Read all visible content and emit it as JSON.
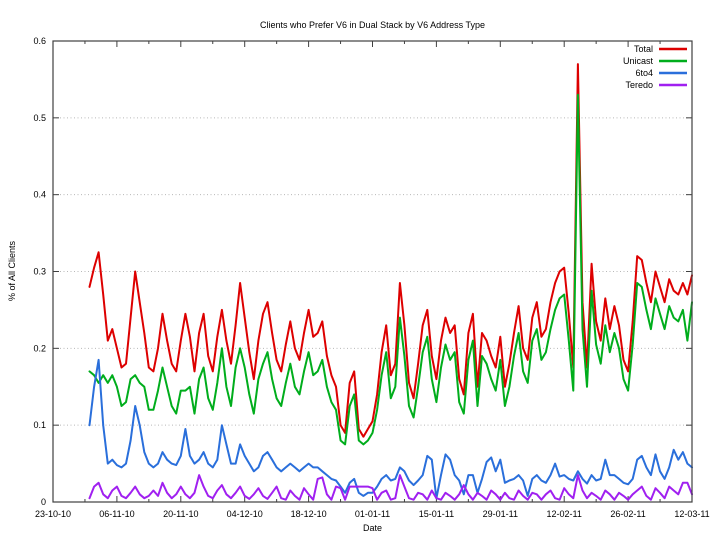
{
  "title": "Clients who Prefer V6 in Dual Stack by V6 Address Type",
  "chart_data": {
    "type": "line",
    "title": "Clients who Prefer V6 in Dual Stack by V6 Address Type",
    "xlabel": "Date",
    "ylabel": "% of All Clients",
    "ylim": [
      0,
      0.6
    ],
    "y_tick_labels": [
      "0",
      "0.1",
      "0.2",
      "0.3",
      "0.4",
      "0.5",
      "0.6"
    ],
    "y_tick_values": [
      0,
      0.1,
      0.2,
      0.3,
      0.4,
      0.5,
      0.6
    ],
    "x_tick_labels": [
      "23-10-10",
      "06-11-10",
      "20-11-10",
      "04-12-10",
      "18-12-10",
      "01-01-11",
      "15-01-11",
      "29-01-11",
      "12-02-11",
      "26-02-11",
      "12-03-11"
    ],
    "x_tick_interval_days": 14,
    "x_minor_tick_interval_days": 7,
    "x_range_days": [
      0,
      140
    ],
    "series_x_start_day": 8,
    "series_x_start_date": "31-10-10",
    "series_x_step_days": 1,
    "grid": "horizontal dotted gridlines at y ticks, ticks mirrored on all four sides pointing inward",
    "legend_position": "top-right inside plot, labels right-aligned left of line samples",
    "series": [
      {
        "name": "Total",
        "color": "#dd0000",
        "values": [
          0.28,
          0.305,
          0.325,
          0.27,
          0.21,
          0.225,
          0.2,
          0.175,
          0.18,
          0.24,
          0.3,
          0.26,
          0.22,
          0.175,
          0.17,
          0.2,
          0.245,
          0.21,
          0.18,
          0.17,
          0.21,
          0.245,
          0.215,
          0.17,
          0.22,
          0.245,
          0.19,
          0.17,
          0.215,
          0.25,
          0.21,
          0.18,
          0.23,
          0.285,
          0.24,
          0.195,
          0.16,
          0.21,
          0.245,
          0.26,
          0.22,
          0.185,
          0.17,
          0.205,
          0.235,
          0.2,
          0.185,
          0.22,
          0.25,
          0.215,
          0.22,
          0.235,
          0.19,
          0.165,
          0.15,
          0.1,
          0.09,
          0.155,
          0.17,
          0.095,
          0.085,
          0.095,
          0.105,
          0.14,
          0.195,
          0.23,
          0.165,
          0.18,
          0.285,
          0.23,
          0.155,
          0.135,
          0.18,
          0.23,
          0.25,
          0.19,
          0.16,
          0.21,
          0.24,
          0.22,
          0.23,
          0.16,
          0.14,
          0.22,
          0.245,
          0.15,
          0.22,
          0.21,
          0.19,
          0.175,
          0.215,
          0.15,
          0.18,
          0.22,
          0.255,
          0.2,
          0.185,
          0.24,
          0.26,
          0.215,
          0.225,
          0.26,
          0.285,
          0.3,
          0.305,
          0.245,
          0.175,
          0.57,
          0.26,
          0.175,
          0.31,
          0.235,
          0.21,
          0.265,
          0.225,
          0.255,
          0.23,
          0.185,
          0.17,
          0.235,
          0.32,
          0.315,
          0.285,
          0.26,
          0.3,
          0.28,
          0.26,
          0.29,
          0.275,
          0.27,
          0.285,
          0.27,
          0.295
        ]
      },
      {
        "name": "Unicast",
        "color": "#00ad1c",
        "values": [
          0.17,
          0.165,
          0.155,
          0.165,
          0.155,
          0.165,
          0.15,
          0.125,
          0.13,
          0.16,
          0.165,
          0.155,
          0.15,
          0.12,
          0.12,
          0.145,
          0.175,
          0.15,
          0.125,
          0.115,
          0.145,
          0.145,
          0.15,
          0.115,
          0.16,
          0.175,
          0.135,
          0.12,
          0.155,
          0.2,
          0.15,
          0.125,
          0.175,
          0.2,
          0.175,
          0.14,
          0.115,
          0.16,
          0.18,
          0.195,
          0.16,
          0.135,
          0.125,
          0.155,
          0.18,
          0.15,
          0.14,
          0.17,
          0.195,
          0.165,
          0.17,
          0.185,
          0.15,
          0.13,
          0.12,
          0.08,
          0.075,
          0.125,
          0.14,
          0.08,
          0.075,
          0.08,
          0.09,
          0.12,
          0.165,
          0.195,
          0.135,
          0.15,
          0.24,
          0.19,
          0.125,
          0.11,
          0.15,
          0.195,
          0.215,
          0.16,
          0.13,
          0.175,
          0.205,
          0.185,
          0.195,
          0.13,
          0.115,
          0.185,
          0.21,
          0.125,
          0.19,
          0.18,
          0.16,
          0.145,
          0.185,
          0.125,
          0.15,
          0.19,
          0.22,
          0.17,
          0.155,
          0.21,
          0.225,
          0.185,
          0.195,
          0.225,
          0.25,
          0.265,
          0.27,
          0.21,
          0.145,
          0.53,
          0.225,
          0.15,
          0.275,
          0.205,
          0.18,
          0.23,
          0.195,
          0.22,
          0.2,
          0.16,
          0.145,
          0.205,
          0.285,
          0.28,
          0.25,
          0.225,
          0.265,
          0.245,
          0.225,
          0.255,
          0.24,
          0.235,
          0.25,
          0.21,
          0.26
        ]
      },
      {
        "name": "6to4",
        "color": "#2a6fdb",
        "values": [
          0.1,
          0.15,
          0.185,
          0.1,
          0.05,
          0.055,
          0.048,
          0.045,
          0.05,
          0.08,
          0.125,
          0.1,
          0.065,
          0.05,
          0.045,
          0.05,
          0.065,
          0.055,
          0.05,
          0.048,
          0.06,
          0.095,
          0.06,
          0.05,
          0.055,
          0.065,
          0.05,
          0.045,
          0.055,
          0.1,
          0.075,
          0.05,
          0.05,
          0.075,
          0.06,
          0.05,
          0.04,
          0.045,
          0.06,
          0.065,
          0.055,
          0.045,
          0.04,
          0.045,
          0.05,
          0.045,
          0.04,
          0.045,
          0.05,
          0.045,
          0.045,
          0.04,
          0.035,
          0.03,
          0.028,
          0.02,
          0.012,
          0.025,
          0.03,
          0.012,
          0.008,
          0.012,
          0.012,
          0.02,
          0.03,
          0.035,
          0.028,
          0.03,
          0.045,
          0.04,
          0.028,
          0.022,
          0.028,
          0.035,
          0.06,
          0.055,
          0.005,
          0.035,
          0.062,
          0.055,
          0.035,
          0.028,
          0.01,
          0.035,
          0.035,
          0.012,
          0.03,
          0.052,
          0.058,
          0.04,
          0.055,
          0.025,
          0.028,
          0.03,
          0.035,
          0.028,
          0.008,
          0.03,
          0.035,
          0.028,
          0.025,
          0.035,
          0.05,
          0.033,
          0.035,
          0.03,
          0.028,
          0.04,
          0.03,
          0.024,
          0.035,
          0.028,
          0.03,
          0.055,
          0.035,
          0.035,
          0.03,
          0.025,
          0.023,
          0.03,
          0.055,
          0.06,
          0.045,
          0.035,
          0.062,
          0.04,
          0.03,
          0.045,
          0.068,
          0.055,
          0.065,
          0.05,
          0.045
        ]
      },
      {
        "name": "Teredo",
        "color": "#a020f0",
        "values": [
          0.005,
          0.02,
          0.025,
          0.01,
          0.005,
          0.015,
          0.02,
          0.008,
          0.005,
          0.012,
          0.02,
          0.01,
          0.005,
          0.008,
          0.015,
          0.008,
          0.025,
          0.012,
          0.005,
          0.01,
          0.02,
          0.01,
          0.005,
          0.012,
          0.035,
          0.02,
          0.008,
          0.005,
          0.015,
          0.022,
          0.01,
          0.005,
          0.012,
          0.02,
          0.008,
          0.004,
          0.01,
          0.018,
          0.008,
          0.004,
          0.012,
          0.02,
          0.005,
          0.003,
          0.015,
          0.008,
          0.003,
          0.018,
          0.01,
          0.003,
          0.03,
          0.032,
          0.01,
          0.003,
          0.02,
          0.018,
          0.003,
          0.02,
          0.02,
          0.02,
          0.02,
          0.02,
          0.018,
          0.003,
          0.012,
          0.015,
          0.003,
          0.005,
          0.035,
          0.02,
          0.005,
          0.003,
          0.012,
          0.01,
          0.003,
          0.015,
          0.005,
          0.003,
          0.012,
          0.008,
          0.003,
          0.01,
          0.022,
          0.01,
          0.003,
          0.012,
          0.008,
          0.003,
          0.015,
          0.01,
          0.003,
          0.012,
          0.005,
          0.003,
          0.015,
          0.008,
          0.003,
          0.012,
          0.01,
          0.003,
          0.01,
          0.015,
          0.005,
          0.003,
          0.018,
          0.01,
          0.005,
          0.035,
          0.015,
          0.005,
          0.012,
          0.008,
          0.003,
          0.015,
          0.01,
          0.003,
          0.012,
          0.008,
          0.003,
          0.01,
          0.015,
          0.02,
          0.008,
          0.003,
          0.018,
          0.012,
          0.005,
          0.02,
          0.015,
          0.01,
          0.025,
          0.025,
          0.01
        ]
      }
    ]
  },
  "colors": {
    "total": "#dd0000",
    "unicast": "#00ad1c",
    "6to4": "#2a6fdb",
    "teredo": "#a020f0",
    "border": "#404040",
    "grid": "#b8b8b8"
  }
}
